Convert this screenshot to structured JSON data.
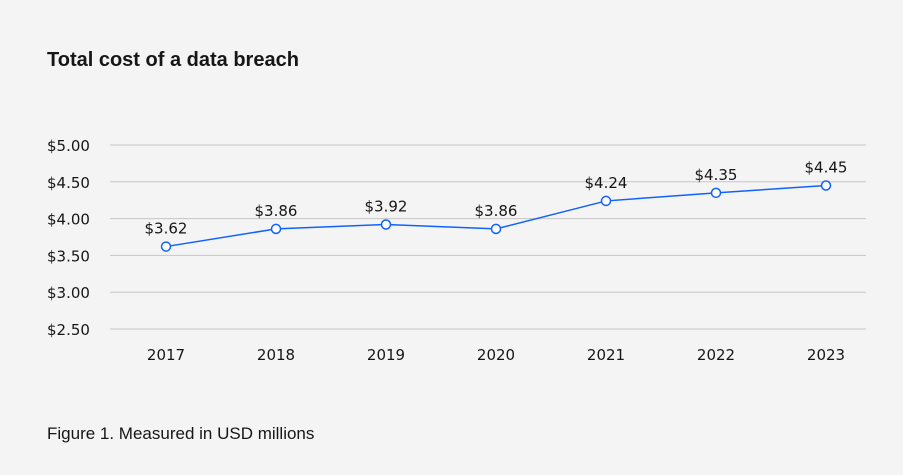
{
  "chart_data": {
    "type": "line",
    "title": "Total cost of a data breach",
    "caption": "Figure 1. Measured in USD millions",
    "categories": [
      "2017",
      "2018",
      "2019",
      "2020",
      "2021",
      "2022",
      "2023"
    ],
    "values": [
      3.62,
      3.86,
      3.92,
      3.86,
      4.24,
      4.35,
      4.45
    ],
    "data_labels": [
      "$3.62",
      "$3.86",
      "$3.92",
      "$3.86",
      "$4.24",
      "$4.35",
      "$4.45"
    ],
    "y_ticks": [
      2.5,
      3.0,
      3.5,
      4.0,
      4.5,
      5.0
    ],
    "y_tick_labels": [
      "$2.50",
      "$3.00",
      "$3.50",
      "$4.00",
      "$4.50",
      "$5.00"
    ],
    "ylim": [
      2.5,
      5.0
    ],
    "xlabel": "",
    "ylabel": "",
    "grid": true,
    "colors": {
      "line": "#0f62fe",
      "grid": "#c6c6c6",
      "background": "#f4f4f4"
    }
  }
}
